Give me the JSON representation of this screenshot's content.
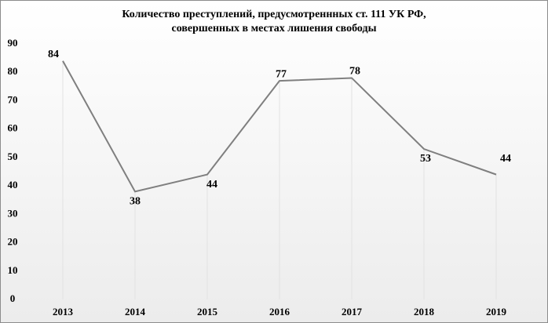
{
  "chart_data": {
    "type": "line",
    "title": [
      "Количество преступлений,  предусмотреннных  ст. 111 УК РФ,",
      "совершенных  в местах  лишения  свободы"
    ],
    "categories": [
      "2013",
      "2014",
      "2015",
      "2016",
      "2017",
      "2018",
      "2019"
    ],
    "values": [
      84,
      38,
      44,
      77,
      78,
      53,
      44
    ],
    "color": "#7f7f7f",
    "ylim": [
      0,
      90
    ],
    "yticks": [
      0,
      10,
      20,
      30,
      40,
      50,
      60,
      70,
      80,
      90
    ],
    "drop_lines": true
  }
}
